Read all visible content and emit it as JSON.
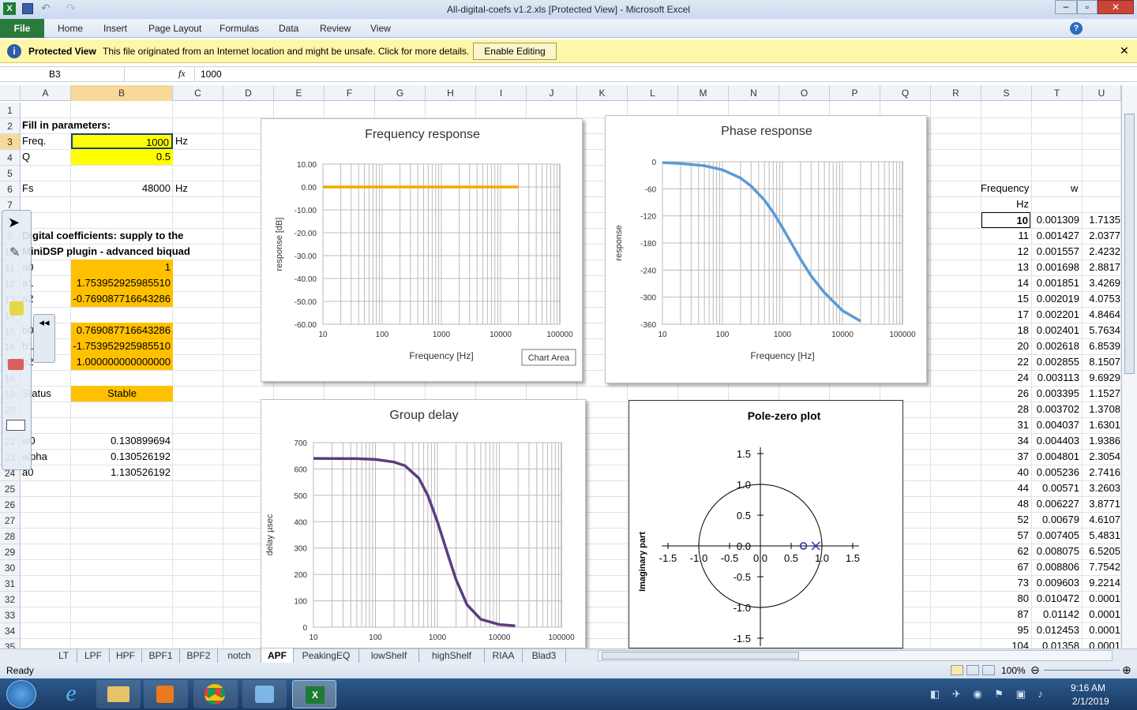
{
  "window": {
    "title": "All-digital-coefs v1.2.xls  [Protected View]  -  Microsoft Excel"
  },
  "ribbon": {
    "file": "File",
    "tabs": [
      "Home",
      "Insert",
      "Page Layout",
      "Formulas",
      "Data",
      "Review",
      "View"
    ]
  },
  "protected_view": {
    "label": "Protected View",
    "message": "This file originated from an Internet location and might be unsafe. Click for more details.",
    "button": "Enable Editing"
  },
  "formula_bar": {
    "name_box": "B3",
    "fx": "fx",
    "value": "1000"
  },
  "columns": [
    "A",
    "B",
    "C",
    "D",
    "E",
    "F",
    "G",
    "H",
    "I",
    "J",
    "K",
    "L",
    "M",
    "N",
    "O",
    "P",
    "Q",
    "R",
    "S",
    "T",
    "U"
  ],
  "rows": [
    "1",
    "2",
    "3",
    "4",
    "5",
    "6",
    "7",
    "8",
    "9",
    "10",
    "11",
    "12",
    "13",
    "14",
    "15",
    "16",
    "17",
    "18",
    "19",
    "20",
    "21",
    "22",
    "23",
    "24",
    "25",
    "26",
    "27",
    "28",
    "29",
    "30",
    "31",
    "32",
    "33",
    "34",
    "35"
  ],
  "sheet": {
    "fill_in": "Fill in parameters:",
    "freq_label": "Freq.",
    "freq_value": "1000",
    "freq_unit": "Hz",
    "q_label": "Q",
    "q_value": "0.5",
    "fs_label": "Fs",
    "fs_value": "48000",
    "fs_unit": "Hz",
    "digital_coefs_1": "Digital coefficients: supply to the",
    "digital_coefs_2": "MiniDSP plugin - advanced biquad",
    "a0_label": "a0",
    "a0_value": "1",
    "a1_label": "a1",
    "a1_value": "1.753952925985510",
    "a2_label": "a2",
    "a2_value": "-0.769087716643286",
    "b0_label": "b0",
    "b0_value": "0.769087716643286",
    "b1_label": "b1",
    "b1_value": "-1.753952925985510",
    "b2_label": "b2",
    "b2_value": "1.000000000000000",
    "status_label": "Status",
    "status_value": "Stable",
    "w0_label": "w0",
    "w0_value": "0.130899694",
    "alpha_label": "alpha",
    "alpha_value": "0.130526192",
    "a0b_label": "a0",
    "a0b_value": "1.130526192"
  },
  "table": {
    "header_s": "Frequency",
    "header_t": "w",
    "unit_s": "Hz",
    "rows": [
      [
        "10",
        "0.001309",
        "1.7135"
      ],
      [
        "11",
        "0.001427",
        "2.0377"
      ],
      [
        "12",
        "0.001557",
        "2.4232"
      ],
      [
        "13",
        "0.001698",
        "2.8817"
      ],
      [
        "14",
        "0.001851",
        "3.4269"
      ],
      [
        "15",
        "0.002019",
        "4.0753"
      ],
      [
        "17",
        "0.002201",
        "4.8464"
      ],
      [
        "18",
        "0.002401",
        "5.7634"
      ],
      [
        "20",
        "0.002618",
        "6.8539"
      ],
      [
        "22",
        "0.002855",
        "8.1507"
      ],
      [
        "24",
        "0.003113",
        "9.6929"
      ],
      [
        "26",
        "0.003395",
        "1.1527"
      ],
      [
        "28",
        "0.003702",
        "1.3708"
      ],
      [
        "31",
        "0.004037",
        "1.6301"
      ],
      [
        "34",
        "0.004403",
        "1.9386"
      ],
      [
        "37",
        "0.004801",
        "2.3054"
      ],
      [
        "40",
        "0.005236",
        "2.7416"
      ],
      [
        "44",
        "0.00571",
        "3.2603"
      ],
      [
        "48",
        "0.006227",
        "3.8771"
      ],
      [
        "52",
        "0.00679",
        "4.6107"
      ],
      [
        "57",
        "0.007405",
        "5.4831"
      ],
      [
        "62",
        "0.008075",
        "6.5205"
      ],
      [
        "67",
        "0.008806",
        "7.7542"
      ],
      [
        "73",
        "0.009603",
        "9.2214"
      ],
      [
        "80",
        "0.010472",
        "0.0001"
      ],
      [
        "87",
        "0.01142",
        "0.0001"
      ],
      [
        "95",
        "0.012453",
        "0.0001"
      ],
      [
        "104",
        "0.01358",
        "0.0001"
      ]
    ]
  },
  "chart_data": [
    {
      "type": "line",
      "title": "Frequency  response",
      "xlabel": "Frequency [Hz]",
      "ylabel": "response [dB]",
      "xscale": "log",
      "xlim": [
        10,
        100000
      ],
      "ylim": [
        -60,
        10
      ],
      "xticks": [
        "10",
        "100",
        "1000",
        "10000",
        "100000"
      ],
      "yticks": [
        "10.00",
        "0.00",
        "-10.00",
        "-20.00",
        "-30.00",
        "-40.00",
        "-50.00",
        "-60.00"
      ],
      "series": [
        {
          "color": "#f5a800",
          "x": [
            10,
            100,
            1000,
            10000,
            20000
          ],
          "y": [
            0,
            0,
            0,
            0,
            0
          ]
        }
      ],
      "tooltip": "Chart Area"
    },
    {
      "type": "line",
      "title": "Phase  response",
      "xlabel": "Frequency [Hz]",
      "ylabel": "response",
      "xscale": "log",
      "xlim": [
        10,
        100000
      ],
      "ylim": [
        -360,
        0
      ],
      "xticks": [
        "10",
        "100",
        "1000",
        "10000",
        "100000"
      ],
      "yticks": [
        "0",
        "-60",
        "-120",
        "-180",
        "-240",
        "-300",
        "-360"
      ],
      "series": [
        {
          "color": "#5b9bd5",
          "x": [
            10,
            20,
            50,
            100,
            200,
            300,
            500,
            700,
            1000,
            1500,
            2000,
            3000,
            5000,
            10000,
            20000
          ],
          "y": [
            -2,
            -4,
            -9,
            -18,
            -36,
            -54,
            -85,
            -112,
            -146,
            -187,
            -216,
            -253,
            -290,
            -330,
            -353
          ]
        }
      ]
    },
    {
      "type": "line",
      "title": "Group  delay",
      "xlabel": "Frequency [Hz]",
      "ylabel": "delay µsec",
      "xscale": "log",
      "xlim": [
        10,
        100000
      ],
      "ylim": [
        0,
        700
      ],
      "xticks": [
        "10",
        "100",
        "1000",
        "10000",
        "100000"
      ],
      "yticks": [
        "700",
        "600",
        "500",
        "400",
        "300",
        "200",
        "100",
        "0"
      ],
      "series": [
        {
          "color": "#5c3c7e",
          "x": [
            10,
            50,
            100,
            200,
            300,
            500,
            700,
            1000,
            1500,
            2000,
            3000,
            5000,
            10000,
            18000
          ],
          "y": [
            640,
            639,
            636,
            626,
            612,
            565,
            500,
            400,
            270,
            180,
            85,
            30,
            10,
            5
          ]
        }
      ]
    },
    {
      "type": "scatter",
      "title": "Pole-zero plot",
      "ylabel": "Imaginary part",
      "xlim": [
        -1.5,
        1.5
      ],
      "ylim": [
        -1.5,
        1.5
      ],
      "xticks": [
        "-1.5",
        "-1.0",
        "-0.5",
        "0.0",
        "0.5",
        "1.0",
        "1.5"
      ],
      "yticks": [
        "1.5",
        "1.0",
        "0.5",
        "0.0",
        "-0.5",
        "-1.0",
        "-1.5"
      ],
      "zeros": [
        {
          "x": 0.7,
          "y": 0
        }
      ],
      "poles": [
        {
          "x": 0.9,
          "y": 0
        }
      ],
      "unit_circle": true
    }
  ],
  "sheet_tabs": [
    "LT",
    "LPF",
    "HPF",
    "BPF1",
    "BPF2",
    "notch",
    "APF",
    "PeakingEQ",
    "lowShelf",
    "highShelf",
    "RIAA",
    "Blad3"
  ],
  "active_tab": "APF",
  "statusbar": {
    "ready": "Ready",
    "zoom": "100%"
  },
  "taskbar": {
    "time": "9:16 AM",
    "date": "2/1/2019"
  }
}
